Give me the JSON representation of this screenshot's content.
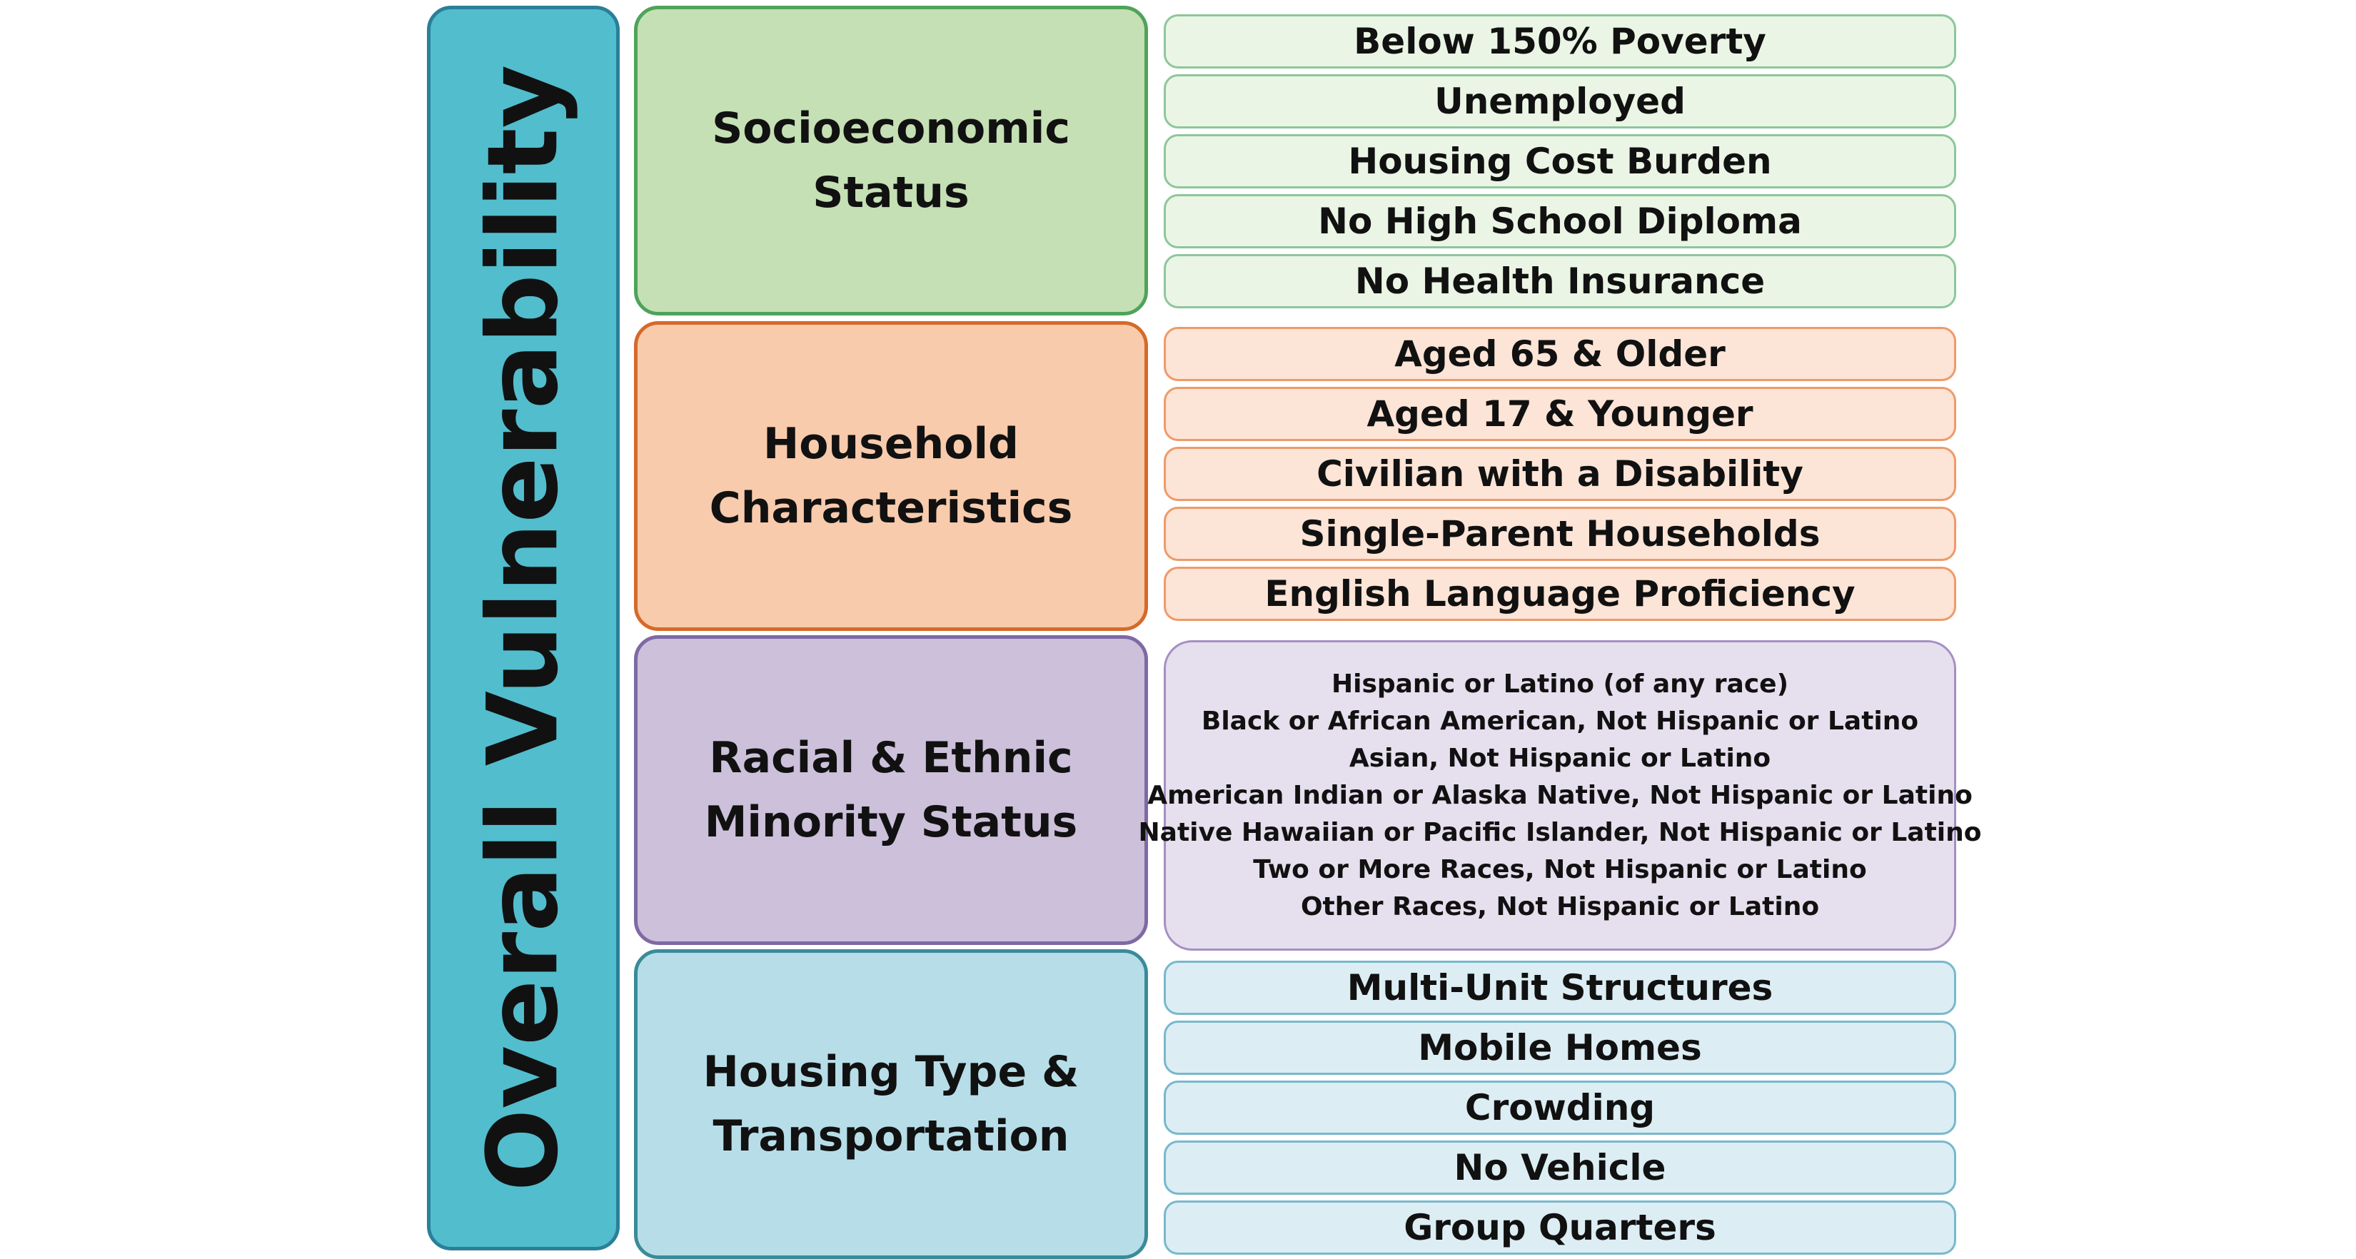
{
  "overall": {
    "label": "Overall Vulnerability",
    "fill": "#52bdcd",
    "border": "#2a7f99"
  },
  "themes": [
    {
      "label": "Socioeconomic\nStatus",
      "fill": "#c5e0b4",
      "border": "#4ea35a",
      "pill_fill": "#ebf5e5",
      "pill_border": "#8cc79a",
      "variables": [
        "Below 150% Poverty",
        "Unemployed",
        "Housing Cost Burden",
        "No High School Diploma",
        "No Health Insurance"
      ]
    },
    {
      "label": "Household\nCharacteristics",
      "fill": "#f8cbad",
      "border": "#d56a2a",
      "pill_fill": "#fce4d6",
      "pill_border": "#ee9a6a",
      "variables": [
        "Aged 65 & Older",
        "Aged 17 & Younger",
        "Civilian with a Disability",
        "Single-Parent Households",
        "English Language Proficiency"
      ]
    },
    {
      "label": "Racial & Ethnic\nMinority Status",
      "fill": "#ccc0da",
      "border": "#7e69a4",
      "pill_fill": "#e6dfee",
      "pill_border": "#a58fc4",
      "variables": [
        "Hispanic or Latino (of any race)",
        "Black or African American, Not Hispanic or Latino",
        "Asian, Not Hispanic or Latino",
        "American Indian or Alaska Native, Not Hispanic or Latino",
        "Native Hawaiian or Pacific Islander, Not Hispanic or Latino",
        "Two or More Races, Not Hispanic or Latino",
        "Other Races, Not Hispanic or Latino"
      ]
    },
    {
      "label": "Housing Type &\nTransportation",
      "fill": "#b7dee8",
      "border": "#3a8b9a",
      "pill_fill": "#dcedf3",
      "pill_border": "#78b8cc",
      "variables": [
        "Multi-Unit Structures",
        "Mobile Homes",
        "Crowding",
        "No Vehicle",
        "Group Quarters"
      ]
    }
  ]
}
